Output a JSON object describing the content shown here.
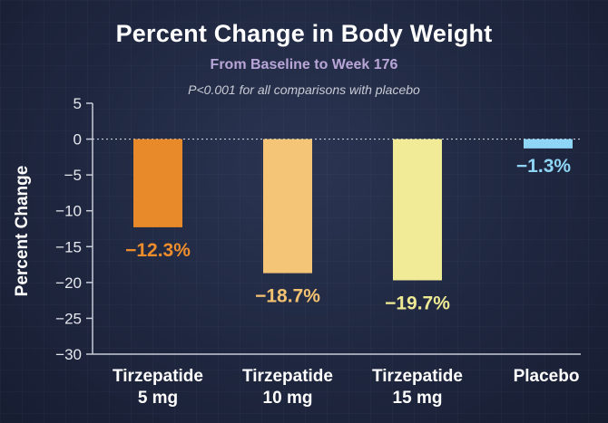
{
  "colors": {
    "background": "#1f2740",
    "subtitle": "#b9a6d8",
    "axis": "#c8ccd8"
  },
  "chart_data": {
    "type": "bar",
    "title": "Percent Change in Body Weight",
    "subtitle": "From Baseline to Week 176",
    "annotation": "P<0.001 for all comparisons with placebo",
    "xlabel": "",
    "ylabel": "Percent Change",
    "ylim": [
      -30,
      5
    ],
    "yticks": [
      5,
      0,
      -5,
      -10,
      -15,
      -20,
      -25,
      -30
    ],
    "ytick_labels": [
      "5",
      "0",
      "−5",
      "−10",
      "−15",
      "−20",
      "−25",
      "−30"
    ],
    "grid": false,
    "zero_line": "dotted",
    "categories": [
      {
        "line1": "Tirzepatide",
        "line2": "5 mg"
      },
      {
        "line1": "Tirzepatide",
        "line2": "10 mg"
      },
      {
        "line1": "Tirzepatide",
        "line2": "15 mg"
      },
      {
        "line1": "Placebo",
        "line2": ""
      }
    ],
    "values": [
      -12.3,
      -18.7,
      -19.7,
      -1.3
    ],
    "data_labels": [
      "−12.3%",
      "−18.7%",
      "−19.7%",
      "−1.3%"
    ],
    "bar_colors": [
      "#e8892a",
      "#f4c477",
      "#f1eb98",
      "#8fd6f6"
    ],
    "label_colors": [
      "#ee8d2c",
      "#f3c271",
      "#eee993",
      "#8fd6f6"
    ]
  }
}
